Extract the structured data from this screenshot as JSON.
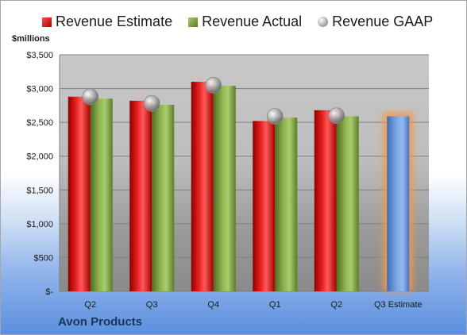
{
  "legend": {
    "estimate": "Revenue Estimate",
    "actual": "Revenue Actual",
    "gaap": "Revenue GAAP"
  },
  "units_label": "$millions",
  "company": "Avon Products",
  "colors": {
    "estimate": "#c00000",
    "actual": "#77933c",
    "gaap": "#a6a6a6",
    "estimate_bar": "#558ed5",
    "estimate_glow": "#f79646"
  },
  "chart_data": {
    "type": "bar",
    "categories": [
      "Q2",
      "Q3",
      "Q4",
      "Q1",
      "Q2",
      "Q3 Estimate"
    ],
    "ylim": [
      0,
      3500
    ],
    "yticks": [
      0,
      500,
      1000,
      1500,
      2000,
      2500,
      3000,
      3500
    ],
    "ytick_labels": [
      "$-",
      "$500",
      "$1,000",
      "$1,500",
      "$2,000",
      "$2,500",
      "$3,000",
      "$3,500"
    ],
    "ylabel": "$millions",
    "xlabel": "",
    "grid": true,
    "legend_position": "top",
    "series": [
      {
        "name": "Revenue Estimate",
        "kind": "bar",
        "values": [
          2880,
          2820,
          3100,
          2520,
          2680,
          2590
        ]
      },
      {
        "name": "Revenue Actual",
        "kind": "bar",
        "values": [
          2850,
          2760,
          3040,
          2570,
          2590,
          null
        ]
      },
      {
        "name": "Revenue GAAP",
        "kind": "marker",
        "values": [
          2880,
          2780,
          3050,
          2590,
          2600,
          null
        ]
      }
    ]
  }
}
